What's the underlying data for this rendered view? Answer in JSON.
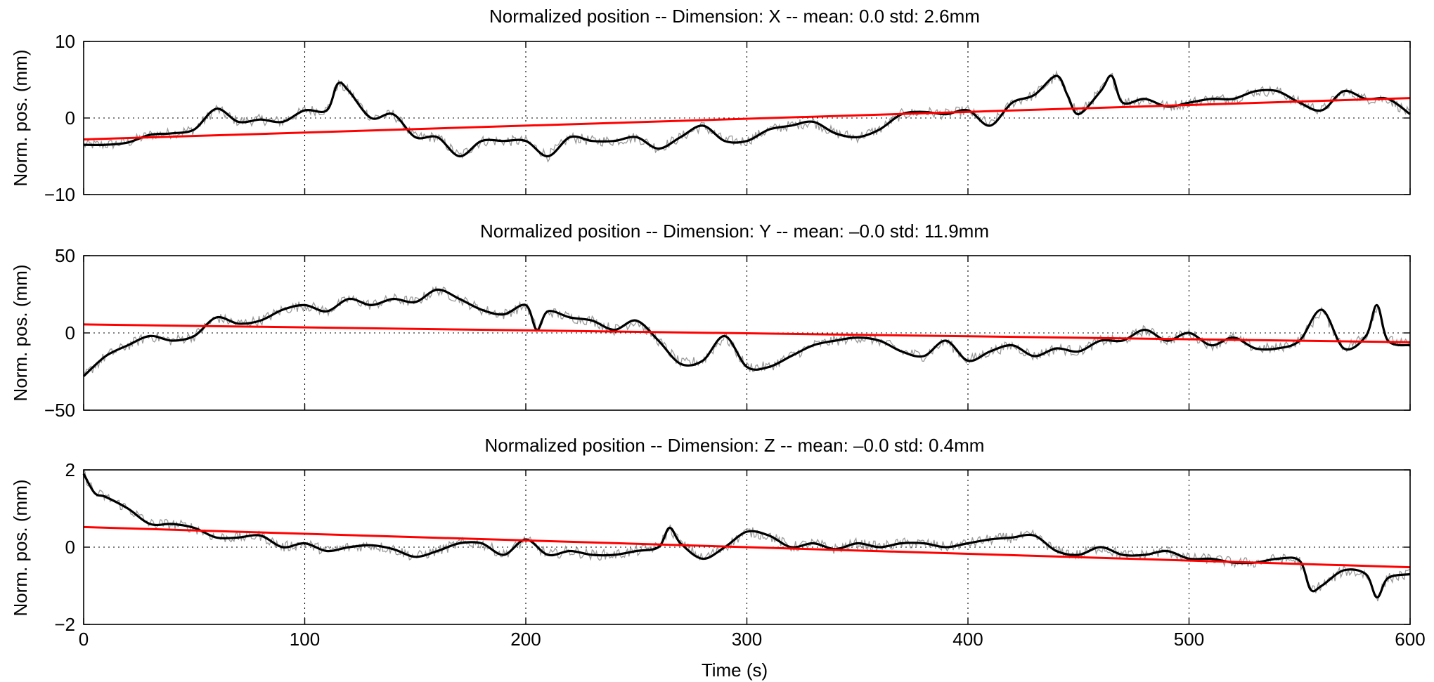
{
  "chart_data": [
    {
      "type": "line",
      "title": "Normalized position -- Dimension: X -- mean: 0.0 std: 2.6mm",
      "ylabel": "Norm. pos. (mm)",
      "xlabel": "",
      "xlim": [
        0,
        600
      ],
      "ylim": [
        -10,
        10
      ],
      "xticks": [
        0,
        100,
        200,
        300,
        400,
        500,
        600
      ],
      "yticks": [
        -10,
        0,
        10
      ],
      "x_tick_labels_shown": false,
      "grid": "dotted",
      "colors": {
        "raw": "#9a9a9a",
        "smoothed": "#000000",
        "trend": "#ff0000"
      },
      "series": [
        {
          "role": "smoothed",
          "x": [
            0,
            10,
            20,
            30,
            40,
            50,
            60,
            70,
            80,
            90,
            100,
            110,
            115,
            120,
            130,
            140,
            150,
            160,
            170,
            180,
            190,
            200,
            210,
            220,
            230,
            240,
            250,
            260,
            270,
            280,
            290,
            300,
            310,
            320,
            330,
            340,
            350,
            360,
            370,
            380,
            390,
            400,
            410,
            420,
            430,
            440,
            445,
            450,
            460,
            465,
            470,
            480,
            490,
            500,
            510,
            520,
            530,
            540,
            550,
            560,
            570,
            580,
            590,
            600
          ],
          "y": [
            -3.5,
            -3.5,
            -3.2,
            -2.2,
            -2,
            -1.5,
            1.2,
            -0.5,
            -0.2,
            -0.5,
            1,
            1,
            4.5,
            3.5,
            0,
            0.5,
            -2.5,
            -2.5,
            -5,
            -3,
            -3,
            -3,
            -5,
            -2.5,
            -3,
            -3,
            -2.5,
            -4,
            -2.5,
            -1,
            -3,
            -3,
            -1.5,
            -1,
            -0.5,
            -2,
            -2.5,
            -1.5,
            0.5,
            0.8,
            0.5,
            1,
            -1,
            2,
            3,
            5.5,
            3,
            0.5,
            3.5,
            5.5,
            2,
            2.5,
            1.5,
            2,
            2.5,
            2.5,
            3.5,
            3.5,
            2,
            1,
            3.5,
            2.5,
            2.5,
            0.5
          ]
        },
        {
          "role": "trend",
          "x": [
            0,
            600
          ],
          "y": [
            -2.8,
            2.6
          ]
        }
      ]
    },
    {
      "type": "line",
      "title": "Normalized position -- Dimension: Y -- mean: –0.0 std: 11.9mm",
      "ylabel": "Norm. pos. (mm)",
      "xlabel": "",
      "xlim": [
        0,
        600
      ],
      "ylim": [
        -50,
        50
      ],
      "xticks": [
        0,
        100,
        200,
        300,
        400,
        500,
        600
      ],
      "yticks": [
        -50,
        0,
        50
      ],
      "x_tick_labels_shown": false,
      "grid": "dotted",
      "colors": {
        "raw": "#9a9a9a",
        "smoothed": "#000000",
        "trend": "#ff0000"
      },
      "series": [
        {
          "role": "smoothed",
          "x": [
            0,
            10,
            20,
            30,
            40,
            50,
            60,
            70,
            80,
            90,
            100,
            110,
            120,
            130,
            140,
            150,
            160,
            170,
            180,
            190,
            200,
            205,
            210,
            220,
            230,
            240,
            250,
            260,
            270,
            280,
            290,
            300,
            310,
            320,
            330,
            340,
            350,
            360,
            370,
            380,
            390,
            400,
            410,
            420,
            430,
            440,
            450,
            460,
            470,
            480,
            490,
            500,
            510,
            520,
            530,
            540,
            550,
            560,
            570,
            580,
            585,
            590,
            600
          ],
          "y": [
            -28,
            -15,
            -8,
            -2,
            -5,
            -2,
            10,
            6,
            8,
            15,
            18,
            14,
            22,
            18,
            22,
            20,
            28,
            22,
            15,
            12,
            18,
            2,
            14,
            10,
            8,
            2,
            8,
            -5,
            -20,
            -18,
            -2,
            -22,
            -22,
            -15,
            -8,
            -5,
            -3,
            -5,
            -12,
            -15,
            -5,
            -18,
            -12,
            -8,
            -15,
            -10,
            -12,
            -5,
            -5,
            2,
            -5,
            0,
            -8,
            -3,
            -10,
            -10,
            -5,
            15,
            -10,
            -2,
            18,
            -5,
            -8
          ]
        },
        {
          "role": "trend",
          "x": [
            0,
            600
          ],
          "y": [
            5.5,
            -6
          ]
        }
      ]
    },
    {
      "type": "line",
      "title": "Normalized position -- Dimension: Z -- mean: –0.0 std: 0.4mm",
      "ylabel": "Norm. pos. (mm)",
      "xlabel": "Time (s)",
      "xlim": [
        0,
        600
      ],
      "ylim": [
        -2,
        2
      ],
      "xticks": [
        0,
        100,
        200,
        300,
        400,
        500,
        600
      ],
      "yticks": [
        -2,
        0,
        2
      ],
      "x_tick_labels_shown": true,
      "grid": "dotted",
      "colors": {
        "raw": "#9a9a9a",
        "smoothed": "#000000",
        "trend": "#ff0000"
      },
      "series": [
        {
          "role": "smoothed",
          "x": [
            0,
            5,
            10,
            20,
            30,
            40,
            50,
            60,
            70,
            80,
            90,
            100,
            110,
            120,
            130,
            140,
            150,
            160,
            170,
            180,
            190,
            200,
            210,
            220,
            230,
            240,
            250,
            260,
            265,
            270,
            280,
            290,
            300,
            310,
            320,
            330,
            340,
            350,
            360,
            370,
            380,
            390,
            400,
            410,
            420,
            430,
            440,
            450,
            460,
            470,
            480,
            490,
            500,
            510,
            520,
            530,
            540,
            550,
            555,
            560,
            570,
            580,
            585,
            590,
            600
          ],
          "y": [
            1.9,
            1.4,
            1.3,
            1.0,
            0.6,
            0.6,
            0.5,
            0.25,
            0.25,
            0.3,
            0,
            0.1,
            -0.1,
            0,
            0.05,
            -0.05,
            -0.25,
            -0.1,
            0.1,
            0.1,
            -0.2,
            0.2,
            -0.2,
            -0.1,
            -0.2,
            -0.2,
            -0.1,
            0,
            0.5,
            0.1,
            -0.3,
            0,
            0.4,
            0.3,
            0,
            0.1,
            -0.05,
            0.1,
            0,
            0.1,
            0.1,
            0,
            0.1,
            0.2,
            0.25,
            0.3,
            -0.1,
            -0.2,
            0,
            -0.2,
            -0.2,
            -0.1,
            -0.3,
            -0.3,
            -0.4,
            -0.4,
            -0.3,
            -0.35,
            -1.1,
            -1.0,
            -0.6,
            -0.7,
            -1.3,
            -0.8,
            -0.7
          ]
        },
        {
          "role": "trend",
          "x": [
            0,
            600
          ],
          "y": [
            0.52,
            -0.52
          ]
        }
      ]
    }
  ]
}
